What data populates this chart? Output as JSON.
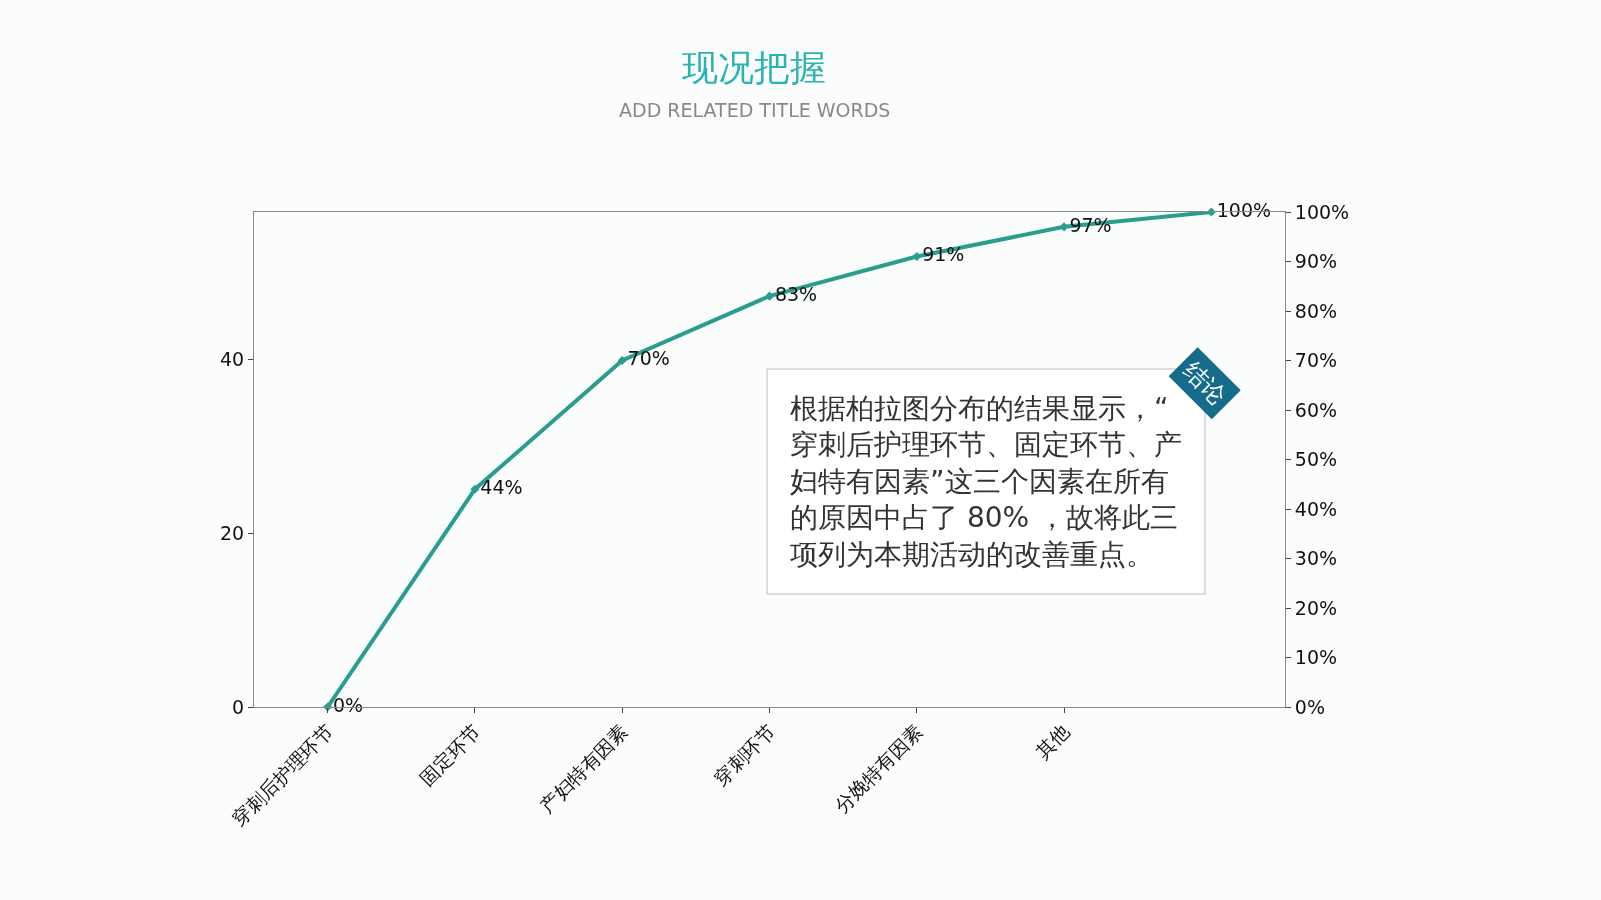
{
  "chart_data": {
    "type": "line",
    "title": "现况把握",
    "subtitle": "ADD RELATED TITLE WORDS",
    "categories": [
      "穿刺后护理环节",
      "固定环节",
      "产妇特有因素",
      "穿刺环节",
      "分娩特有因素",
      "其他",
      null
    ],
    "series": [
      {
        "color": "#2a9d8f",
        "axis": "y2",
        "values": [
          0,
          44,
          70,
          83,
          91,
          97,
          100
        ],
        "value_labels": [
          "0%",
          "44%",
          "70%",
          "83%",
          "91%",
          "97%",
          "100%"
        ]
      }
    ],
    "ylim": [
      0,
      57
    ],
    "yticks": [
      0,
      20,
      40
    ],
    "y2lim": [
      0,
      100
    ],
    "y2ticks": [
      {
        "value": 0,
        "label": "0%"
      },
      {
        "value": 10,
        "label": "10%"
      },
      {
        "value": 20,
        "label": "20%"
      },
      {
        "value": 30,
        "label": "30%"
      },
      {
        "value": 40,
        "label": "40%"
      },
      {
        "value": 50,
        "label": "50%"
      },
      {
        "value": 60,
        "label": "60%"
      },
      {
        "value": 70,
        "label": "70%"
      },
      {
        "value": 80,
        "label": "80%"
      },
      {
        "value": 90,
        "label": "90%"
      },
      {
        "value": 100,
        "label": "100%"
      }
    ],
    "marker": "diamond",
    "annotations": [
      "结论",
      "根据柏拉图分布的结果显示，“穿刺后护理环节、固定环节、产妇特有因素”这三个因素在所有的原因中占了 80% ，故将此三项列为本期活动的改善重点。"
    ]
  }
}
